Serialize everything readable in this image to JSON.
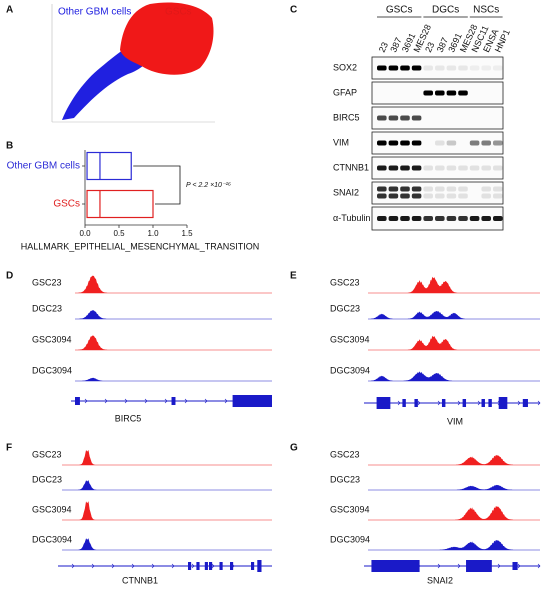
{
  "panel_labels": [
    "A",
    "B",
    "C",
    "D",
    "E",
    "F",
    "G"
  ],
  "scatter": {
    "groups": [
      "Other GBM cells",
      "GSCs"
    ]
  },
  "chart_data": {
    "type": "box",
    "categories": [
      "Other GBM cells",
      "GSCs"
    ],
    "q1": [
      0.03,
      0.03
    ],
    "median": [
      0.22,
      0.22
    ],
    "q3": [
      0.68,
      1.0
    ],
    "colors": [
      "#2b2bd6",
      "#e02020"
    ],
    "xlim": [
      0,
      1.5
    ],
    "xticks": [
      {
        "value": 0,
        "label": "0.0"
      },
      0.5,
      {
        "value": 1,
        "label": "1.0"
      },
      1.5
    ],
    "xlabel": "HALLMARK_EPITHELIAL_MESENCHYMAL_TRANSITION",
    "annotation": "P < 2.2 ×10⁻¹⁶"
  },
  "western_blot": {
    "groups": [
      "GSCs",
      "DGCs",
      "NSCs"
    ],
    "lanes": [
      "23",
      "387",
      "3691",
      "MES28",
      "23",
      "387",
      "3691",
      "MES28",
      "NSC11",
      "ENSA",
      "HNP1"
    ],
    "proteins": [
      "SOX2",
      "GFAP",
      "BIRC5",
      "VIM",
      "CTNNB1",
      "SNAI2",
      "α-Tubulin"
    ]
  },
  "tracks": [
    {
      "samples": [
        "GSC23",
        "DGC23",
        "GSC3094",
        "DGC3094"
      ],
      "gene": "BIRC5"
    },
    {
      "samples": [
        "GSC23",
        "DGC23",
        "GSC3094",
        "DGC3094"
      ],
      "gene": "VIM"
    },
    {
      "samples": [
        "GSC23",
        "DGC23",
        "GSC3094",
        "DGC3094"
      ],
      "gene": "CTNNB1"
    },
    {
      "samples": [
        "GSC23",
        "DGC23",
        "GSC3094",
        "DGC3094"
      ],
      "gene": "SNAI2"
    }
  ]
}
